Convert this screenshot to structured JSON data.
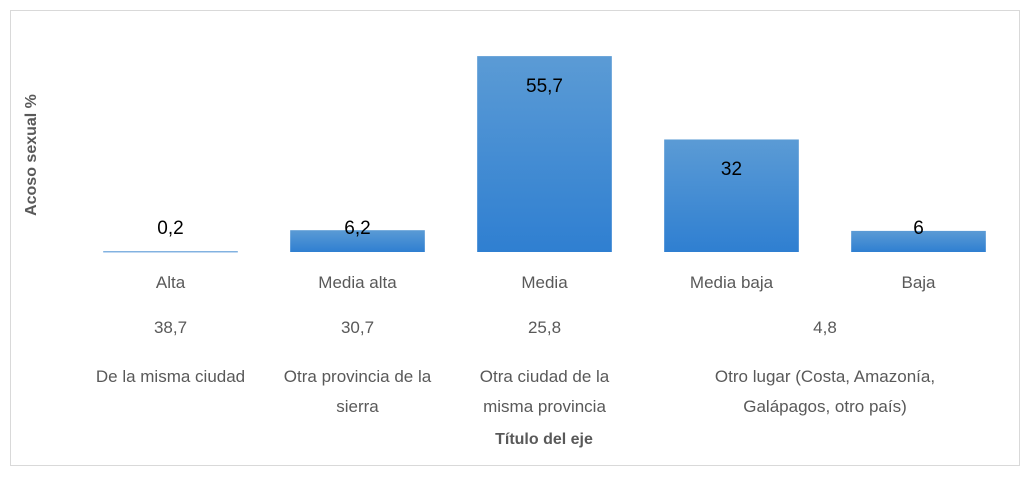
{
  "chart_data": {
    "type": "bar",
    "y_label": "Acoso sexual %",
    "x_label": "Título del eje",
    "categories": [
      "Alta",
      "Media alta",
      "Media",
      "Media baja",
      "Baja"
    ],
    "category_levels": [
      [
        "38,7",
        "30,7",
        "25,8",
        "4,8",
        null
      ],
      [
        "De la misma ciudad",
        "Otra provincia de la sierra",
        "Otra ciudad de la misma provincia",
        "Otro lugar (Costa, Amazonía, Galápagos, otro país)",
        null
      ]
    ],
    "values": [
      0.2,
      6.2,
      55.7,
      32,
      6
    ],
    "value_labels": [
      "0,2",
      "6,2",
      "55,7",
      "32",
      "6"
    ],
    "color": "#4a90d9",
    "ylim": [
      0,
      60
    ]
  }
}
